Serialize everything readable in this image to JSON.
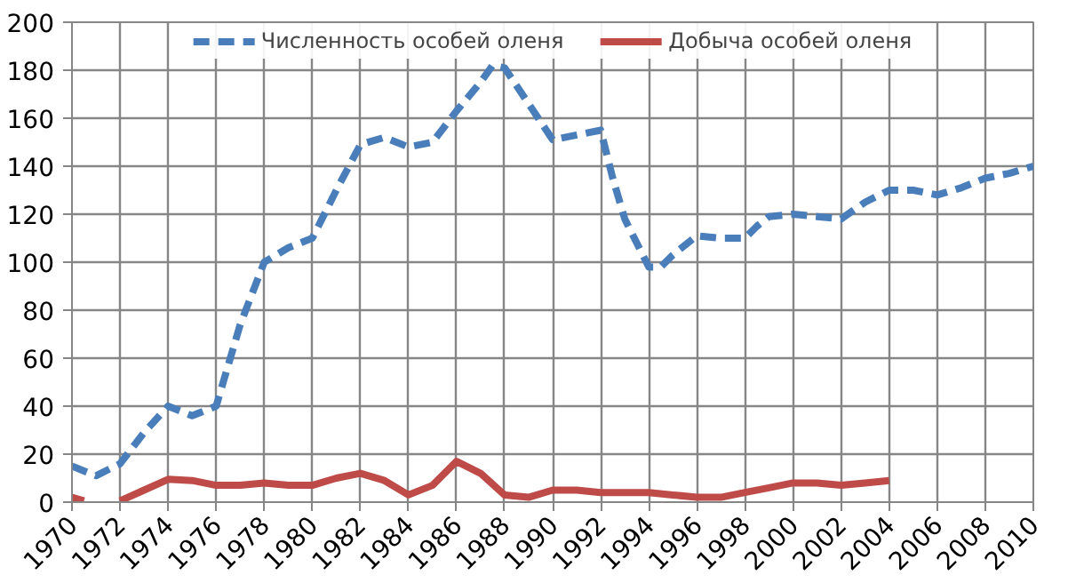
{
  "chart_data": {
    "type": "line",
    "xlim": [
      1970,
      2010
    ],
    "ylim": [
      0,
      200
    ],
    "xticks": [
      1970,
      1972,
      1974,
      1976,
      1978,
      1980,
      1982,
      1984,
      1986,
      1988,
      1990,
      1992,
      1994,
      1996,
      1998,
      2000,
      2002,
      2004,
      2006,
      2008,
      2010
    ],
    "yticks": [
      0,
      20,
      40,
      60,
      80,
      100,
      120,
      140,
      160,
      180,
      200
    ],
    "grid": true,
    "legend": "top",
    "line_style": "solid",
    "series": [
      {
        "name": "Численность особей оленя",
        "color": "#4a7ebb",
        "line_style": "dashed",
        "x": [
          1970,
          1971,
          1972,
          1973,
          1974,
          1975,
          1976,
          1977,
          1978,
          1979,
          1980,
          1981,
          1982,
          1983,
          1984,
          1985,
          1986,
          1987,
          1987.5,
          1988,
          1989,
          1990,
          1991,
          1992,
          1992.5,
          1993,
          1994,
          1994.5,
          1995,
          1996,
          1997,
          1998,
          1998.5,
          1999,
          2000,
          2001,
          2002,
          2003,
          2004,
          2005,
          2006,
          2007,
          2008,
          2009,
          2010
        ],
        "values": [
          15,
          11,
          16,
          29,
          40,
          36,
          40,
          74,
          100,
          106,
          110,
          130,
          149,
          152,
          148,
          150,
          163,
          175,
          182,
          181,
          166,
          151,
          153,
          155,
          135,
          118,
          98,
          98,
          103,
          111,
          110,
          110,
          115,
          119,
          120,
          119,
          118,
          125,
          130,
          130,
          128,
          131,
          135,
          137,
          140
        ]
      },
      {
        "name": "Добыча особей оленя",
        "color": "#be4b48",
        "x": [
          1970,
          1970.5,
          1971,
          1972,
          1973,
          1974,
          1975,
          1976,
          1977,
          1978,
          1979,
          1980,
          1981,
          1982,
          1983,
          1984,
          1985,
          1986,
          1987,
          1988,
          1989,
          1990,
          1991,
          1992,
          1993,
          1994,
          1995,
          1996,
          1997,
          1998,
          1999,
          2000,
          2001,
          2002,
          2003,
          2004
        ],
        "values": [
          2,
          0.5,
          null,
          0.5,
          5,
          9.5,
          9,
          7,
          7,
          8,
          7,
          7,
          10,
          12,
          9,
          3,
          7,
          17,
          12,
          3,
          2,
          5,
          5,
          4,
          4,
          4,
          3,
          2,
          2,
          4,
          6,
          8,
          8,
          7,
          8,
          9
        ]
      }
    ]
  }
}
